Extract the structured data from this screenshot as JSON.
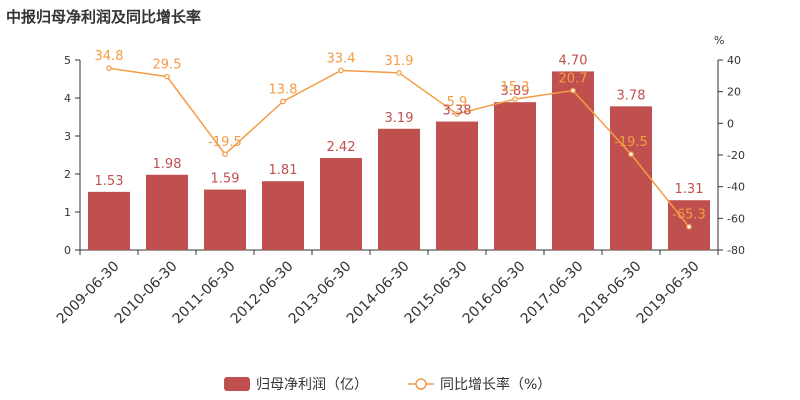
{
  "chart_data": {
    "type": "bar",
    "title": "中报归母净利润及同比增长率",
    "categories": [
      "2009-06-30",
      "2010-06-30",
      "2011-06-30",
      "2012-06-30",
      "2013-06-30",
      "2014-06-30",
      "2015-06-30",
      "2016-06-30",
      "2017-06-30",
      "2018-06-30",
      "2019-06-30"
    ],
    "series": [
      {
        "name": "归母净利润（亿）",
        "type": "bar",
        "axis": "left",
        "color": "#c0504d",
        "values": [
          1.53,
          1.98,
          1.59,
          1.81,
          2.42,
          3.19,
          3.38,
          3.89,
          4.7,
          3.78,
          1.31
        ],
        "labels": [
          "1.53",
          "1.98",
          "1.59",
          "1.81",
          "2.42",
          "3.19",
          "3.38",
          "3.89",
          "4.70",
          "3.78",
          "1.31"
        ]
      },
      {
        "name": "同比增长率（%）",
        "type": "line",
        "axis": "right",
        "color": "#f39c45",
        "values": [
          34.8,
          29.5,
          -19.5,
          13.8,
          33.4,
          31.9,
          5.9,
          15.3,
          20.7,
          -19.5,
          -65.3
        ],
        "labels": [
          "34.8",
          "29.5",
          "-19.5",
          "13.8",
          "33.4",
          "31.9",
          "5.9",
          "15.3",
          "20.7",
          "-19.5",
          "-65.3"
        ]
      }
    ],
    "y_left": {
      "min": 0,
      "max": 5,
      "ticks": [
        "0",
        "1",
        "2",
        "3",
        "4",
        "5"
      ]
    },
    "y_right": {
      "min": -80,
      "max": 40,
      "unit": "%",
      "ticks": [
        "-80",
        "-60",
        "-40",
        "-20",
        "0",
        "20",
        "40"
      ]
    },
    "grid": false,
    "legend_position": "bottom"
  }
}
